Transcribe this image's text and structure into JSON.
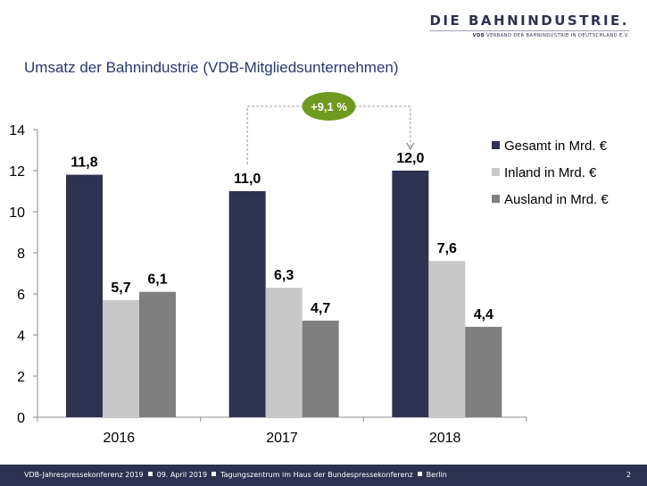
{
  "logo": {
    "main": "DIE BAHNINDUSTRIE.",
    "sub_bold": "VDB",
    "sub_rest": " VERBAND DER BAHNINDUSTRIE IN DEUTSCHLAND E.V."
  },
  "title": "Umsatz der Bahnindustrie (VDB-Mitgliedsunternehmen)",
  "chart_data": {
    "type": "bar",
    "categories": [
      "2016",
      "2017",
      "2018"
    ],
    "series": [
      {
        "name": "Gesamt in Mrd. €",
        "values": [
          11.8,
          11.0,
          12.0
        ],
        "labels": [
          "11,8",
          "11,0",
          "12,0"
        ],
        "color": "#2d3250"
      },
      {
        "name": "Inland in Mrd. €",
        "values": [
          5.7,
          6.3,
          7.6
        ],
        "labels": [
          "5,7",
          "6,3",
          "7,6"
        ],
        "color": "#c8c8c8"
      },
      {
        "name": "Ausland in Mrd. €",
        "values": [
          6.1,
          4.7,
          4.4
        ],
        "labels": [
          "6,1",
          "4,7",
          "4,4"
        ],
        "color": "#7f7f7f"
      }
    ],
    "yticks": [
      "0",
      "2",
      "4",
      "6",
      "8",
      "10",
      "12",
      "14"
    ],
    "ylim": [
      0,
      14
    ],
    "grid": false,
    "legend": "right",
    "annotation": {
      "text": "+9,1 %",
      "color": "#6e9a1f",
      "from": "2017",
      "to": "2018"
    }
  },
  "footer": {
    "items": [
      "VDB-Jahrespressekonferenz 2019",
      "09. April 2019",
      "Tagungszentrum im Haus der Bundespressekonferenz",
      "Berlin"
    ],
    "page": "2"
  }
}
